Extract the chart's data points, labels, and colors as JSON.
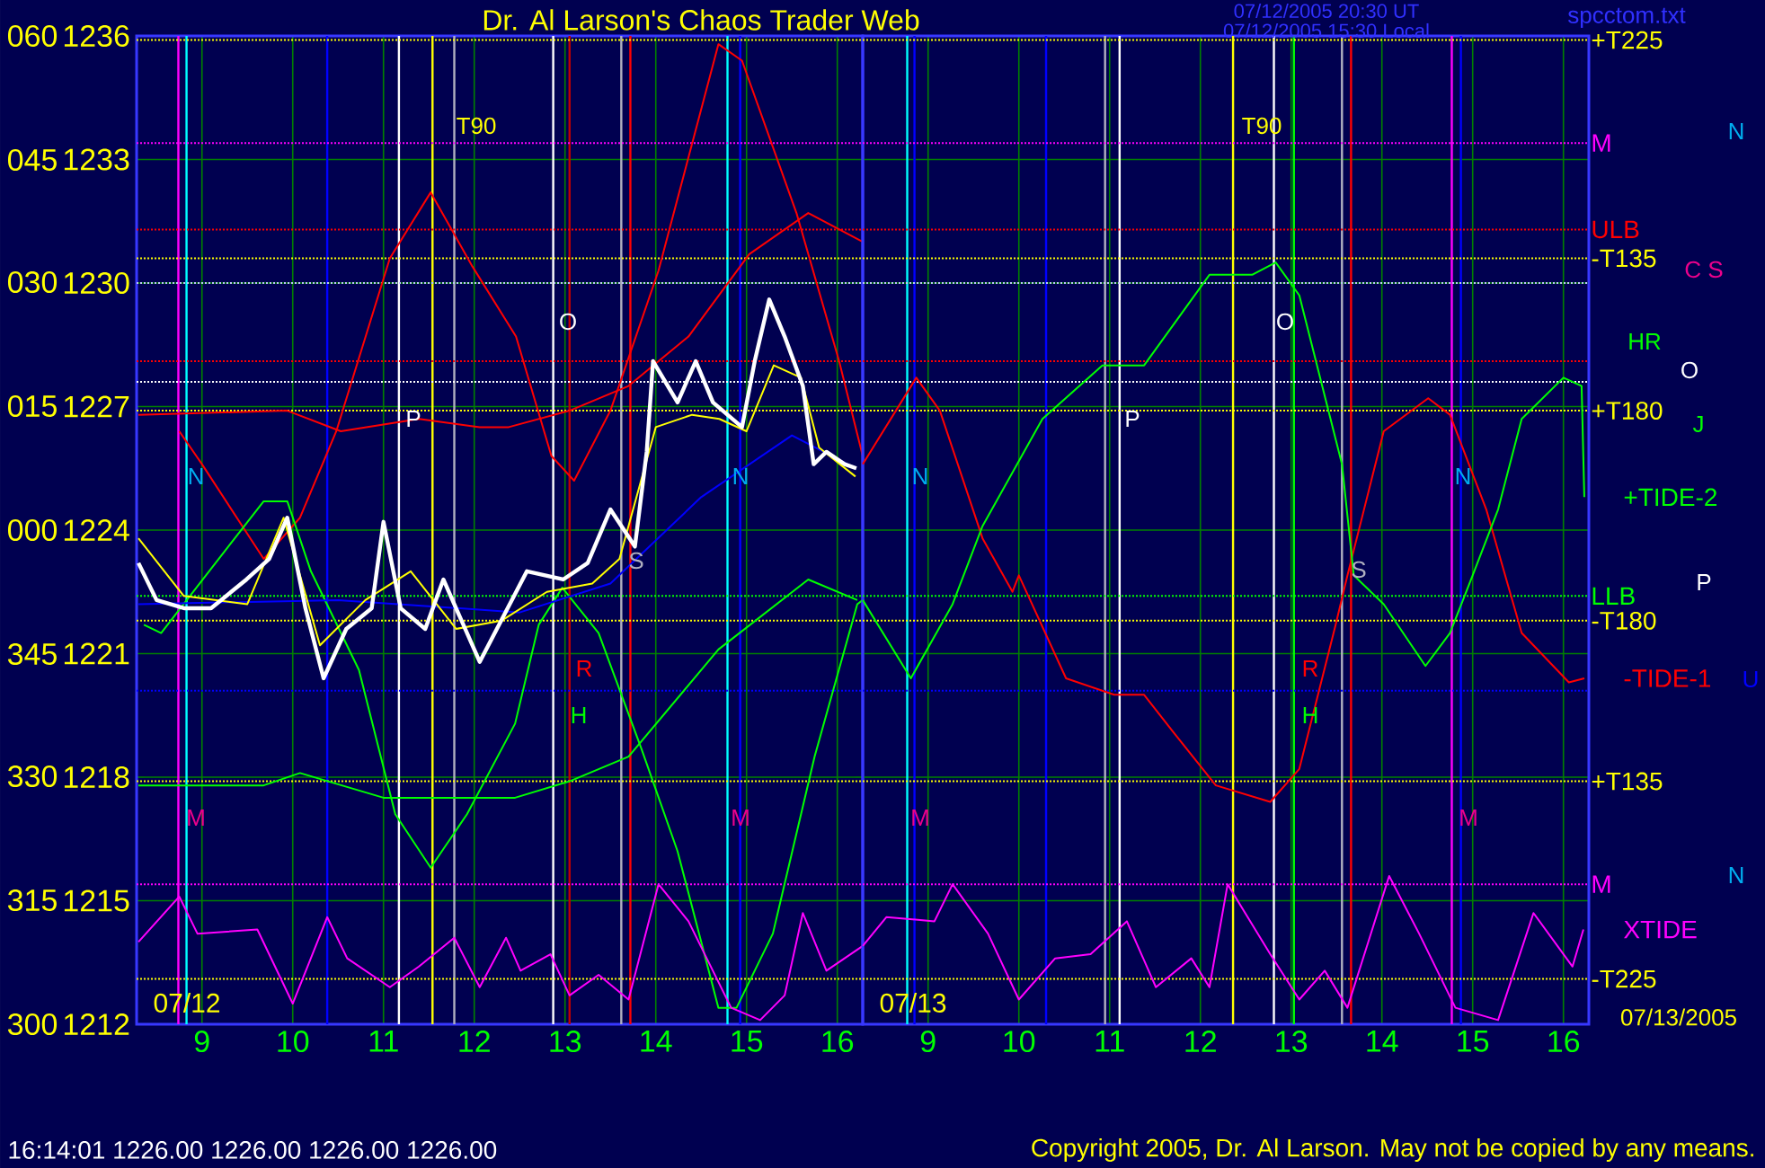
{
  "chart_data": [
    {
      "type": "line",
      "title": "Dr. Al Larson's Chaos Trader Web",
      "xlim": [
        8.28,
        16.28
      ],
      "ylim": [
        1212,
        1236
      ],
      "grid": true,
      "xticks": [
        9,
        10,
        11,
        12,
        13,
        14,
        15,
        16
      ],
      "yticks": [
        1212,
        1215,
        1218,
        1221,
        1224,
        1227,
        1230,
        1233,
        1236
      ],
      "series": [
        {
          "color": "#ff0000",
          "x": [
            8.75,
            9.0,
            9.68,
            10.08,
            10.48,
            11.07,
            11.52,
            11.98,
            12.46,
            12.85,
            13.1,
            13.5,
            14.03,
            14.69,
            14.95,
            15.55,
            16.02,
            16.28
          ],
          "values": [
            1226.4,
            1225.6,
            1223.3,
            1224.3,
            1226.4,
            1230.6,
            1232.2,
            1230.4,
            1228.7,
            1225.8,
            1225.2,
            1226.9,
            1230.3,
            1235.8,
            1235.4,
            1231.7,
            1228.1,
            1225.8
          ]
        },
        {
          "color": "#ff0000",
          "x": [
            8.3,
            9.94,
            10.53,
            11.39,
            12.06,
            12.38,
            13.05,
            13.7,
            14.36,
            15.03,
            15.68,
            16.28
          ],
          "values": [
            1226.8,
            1226.9,
            1226.4,
            1226.7,
            1226.5,
            1226.5,
            1226.9,
            1227.5,
            1228.7,
            1230.7,
            1231.7,
            1231.0
          ]
        },
        {
          "color": "#00ff00",
          "x": [
            8.36,
            8.55,
            9.29,
            9.68,
            9.94,
            10.2,
            10.73,
            11.13,
            11.52,
            11.92,
            12.45,
            12.71,
            12.97,
            13.37,
            13.84,
            14.24,
            14.69,
            14.89,
            15.29,
            15.75,
            16.22,
            16.28
          ],
          "values": [
            1221.7,
            1221.5,
            1223.6,
            1224.7,
            1224.7,
            1223.0,
            1220.6,
            1217.1,
            1215.8,
            1217.1,
            1219.3,
            1221.7,
            1222.6,
            1221.5,
            1218.7,
            1216.2,
            1212.4,
            1212.4,
            1214.2,
            1218.5,
            1222.2,
            1222.3
          ]
        },
        {
          "color": "#00ff00",
          "x": [
            8.3,
            9.68,
            10.08,
            11.0,
            12.06,
            12.45,
            13.05,
            13.7,
            14.69,
            15.68,
            16.22
          ],
          "values": [
            1217.8,
            1217.8,
            1218.1,
            1217.5,
            1217.5,
            1217.5,
            1217.9,
            1218.5,
            1221.1,
            1222.8,
            1222.3
          ]
        },
        {
          "color": "#ff00ff",
          "x": [
            8.3,
            8.75,
            8.95,
            9.61,
            10.0,
            10.38,
            10.6,
            11.07,
            11.39,
            11.78,
            12.06,
            12.35,
            12.51,
            12.84,
            13.05,
            13.37,
            13.7,
            14.03,
            14.36,
            14.83,
            15.15,
            15.42,
            15.62,
            15.88,
            16.28
          ],
          "values": [
            1214.0,
            1215.1,
            1214.2,
            1214.3,
            1212.5,
            1214.6,
            1213.6,
            1212.9,
            1213.4,
            1214.1,
            1212.9,
            1214.1,
            1213.3,
            1213.7,
            1212.7,
            1213.2,
            1212.6,
            1215.4,
            1214.5,
            1212.4,
            1212.1,
            1212.7,
            1214.7,
            1213.3,
            1213.9
          ]
        },
        {
          "color": "#0000ff",
          "x": [
            8.3,
            10.5,
            12.5,
            13.5,
            14.5,
            15.5,
            16.2
          ],
          "values": [
            1222.2,
            1222.3,
            1222.0,
            1222.7,
            1224.8,
            1226.3,
            1225.5
          ]
        },
        {
          "color": "#ffff00",
          "x": [
            8.3,
            8.8,
            9.5,
            9.9,
            10.3,
            10.8,
            11.3,
            11.8,
            12.3,
            12.8,
            13.3,
            13.6,
            14.0,
            14.4,
            14.7,
            15.0,
            15.3,
            15.6,
            15.8,
            16.2
          ],
          "values": [
            1223.8,
            1222.4,
            1222.2,
            1224.3,
            1221.2,
            1222.3,
            1223.0,
            1221.6,
            1221.8,
            1222.5,
            1222.7,
            1223.3,
            1226.5,
            1226.8,
            1226.7,
            1226.4,
            1228.0,
            1227.7,
            1226.0,
            1225.3
          ]
        },
        {
          "color": "#ffffff",
          "x": [
            8.3,
            8.5,
            8.81,
            9.1,
            9.49,
            9.74,
            9.94,
            10.14,
            10.34,
            10.59,
            10.87,
            11.0,
            11.19,
            11.46,
            11.66,
            12.06,
            12.32,
            12.58,
            12.98,
            13.25,
            13.5,
            13.77,
            13.9,
            13.97,
            14.24,
            14.44,
            14.63,
            14.95,
            15.09,
            15.25,
            15.42,
            15.62,
            15.74,
            15.88,
            16.08,
            16.21
          ],
          "values": [
            1223.2,
            1222.3,
            1222.1,
            1222.1,
            1222.8,
            1223.3,
            1224.3,
            1222.1,
            1220.4,
            1221.6,
            1222.1,
            1224.2,
            1222.1,
            1221.6,
            1222.8,
            1220.8,
            1221.9,
            1223.0,
            1222.8,
            1223.2,
            1224.5,
            1223.6,
            1225.9,
            1228.1,
            1227.1,
            1228.1,
            1227.1,
            1226.5,
            1228.1,
            1229.6,
            1228.7,
            1227.5,
            1225.6,
            1225.9,
            1225.6,
            1225.5
          ]
        }
      ],
      "ref_lines": [
        {
          "axis": "x",
          "value": 8.74,
          "color": "#ff00ff"
        },
        {
          "axis": "x",
          "value": 8.83,
          "color": "#00ffff"
        },
        {
          "axis": "x",
          "value": 10.38,
          "color": "#0000ff"
        },
        {
          "axis": "x",
          "value": 11.17,
          "color": "#ffffff"
        },
        {
          "axis": "x",
          "value": 11.54,
          "color": "#ffff00"
        },
        {
          "axis": "x",
          "value": 11.78,
          "color": "#b0b0c0"
        },
        {
          "axis": "x",
          "value": 12.87,
          "color": "#ffffff"
        },
        {
          "axis": "x",
          "value": 13.05,
          "color": "#c00000"
        },
        {
          "axis": "x",
          "value": 13.62,
          "color": "#b0b0c0"
        },
        {
          "axis": "x",
          "value": 13.72,
          "color": "#ff0000"
        },
        {
          "axis": "x",
          "value": 14.79,
          "color": "#00ffff"
        },
        {
          "axis": "x",
          "value": 14.93,
          "color": "#0000ff"
        },
        {
          "axis": "y",
          "value": 1235.9,
          "color": "#ffff00",
          "line_style": "dotted"
        },
        {
          "axis": "y",
          "value": 1233.4,
          "color": "#ff00ff",
          "line_style": "dotted"
        },
        {
          "axis": "y",
          "value": 1231.3,
          "color": "#ff0000",
          "line_style": "dotted"
        },
        {
          "axis": "y",
          "value": 1230.6,
          "color": "#ffff00",
          "line_style": "dotted"
        },
        {
          "axis": "y",
          "value": 1230.0,
          "color": "#c0c0ff",
          "line_style": "dotted"
        },
        {
          "axis": "y",
          "value": 1228.1,
          "color": "#ff0000",
          "line_style": "dotted"
        },
        {
          "axis": "y",
          "value": 1227.6,
          "color": "#ffffff",
          "line_style": "dotted"
        },
        {
          "axis": "y",
          "value": 1226.9,
          "color": "#ffff00",
          "line_style": "dotted"
        },
        {
          "axis": "y",
          "value": 1222.4,
          "color": "#00ff00",
          "line_style": "dotted"
        },
        {
          "axis": "y",
          "value": 1221.8,
          "color": "#ffff00",
          "line_style": "dotted"
        },
        {
          "axis": "y",
          "value": 1220.1,
          "color": "#0000ff",
          "line_style": "dotted"
        },
        {
          "axis": "y",
          "value": 1217.9,
          "color": "#ffff00",
          "line_style": "dotted"
        },
        {
          "axis": "y",
          "value": 1215.4,
          "color": "#ff00ff",
          "line_style": "dotted"
        },
        {
          "axis": "y",
          "value": 1213.1,
          "color": "#ffff00",
          "line_style": "dotted"
        }
      ],
      "annotations": [
        "07/12/2005 20:30 UT",
        "07/12/2005 15:30 Local",
        "spcctom.txt",
        "16:14:01  1226.00 1226.00 1226.00 1226.00",
        "Copyright 2005, Dr. Al Larson. May not be copied by any means.",
        "060",
        "045",
        "030",
        "015",
        "000",
        "345",
        "330",
        "315",
        "300",
        "07/12",
        "T90",
        "O",
        "P",
        "N",
        "N",
        "S",
        "R",
        "H",
        "M",
        "M"
      ]
    },
    {
      "type": "line",
      "tick_labels": "x",
      "xlim": [
        8.28,
        16.28
      ],
      "ylim": [
        1212,
        1236
      ],
      "grid": true,
      "xticks": [
        9,
        10,
        11,
        12,
        13,
        14,
        15,
        16
      ],
      "yticks": [
        1212,
        1215,
        1218,
        1221,
        1224,
        1227,
        1230,
        1233,
        1236
      ],
      "series": [
        {
          "name": "-TIDE-1",
          "color": "#ff0000",
          "x": [
            8.28,
            8.87,
            9.13,
            9.6,
            9.93,
            10.0,
            10.52,
            11.05,
            11.38,
            11.7,
            12.17,
            12.77,
            13.09,
            13.49,
            13.62,
            14.02,
            14.51,
            14.75,
            15.15,
            15.41,
            15.54,
            16.06,
            16.23
          ],
          "values": [
            1225.6,
            1227.7,
            1226.9,
            1223.8,
            1222.5,
            1222.9,
            1220.4,
            1220.0,
            1220.0,
            1219.1,
            1217.8,
            1217.4,
            1218.2,
            1221.7,
            1222.9,
            1226.4,
            1227.2,
            1226.8,
            1224.5,
            1222.5,
            1221.5,
            1220.3,
            1220.4
          ]
        },
        {
          "name": "+TIDE-2",
          "color": "#00ff00",
          "x": [
            8.28,
            8.81,
            9.27,
            9.6,
            10.26,
            10.92,
            11.38,
            12.1,
            12.57,
            12.83,
            13.09,
            13.56,
            13.69,
            14.02,
            14.48,
            14.75,
            15.0,
            15.28,
            15.54,
            16.0,
            16.2,
            16.23
          ],
          "values": [
            1222.3,
            1220.4,
            1222.2,
            1224.1,
            1226.7,
            1228.0,
            1228.0,
            1230.2,
            1230.2,
            1230.5,
            1229.7,
            1225.6,
            1222.9,
            1222.2,
            1220.7,
            1221.5,
            1222.9,
            1224.5,
            1226.7,
            1227.7,
            1227.5,
            1224.8
          ]
        },
        {
          "name": "XTIDE",
          "color": "#ff00ff",
          "x": [
            8.28,
            8.54,
            9.07,
            9.27,
            9.66,
            10.0,
            10.4,
            10.79,
            11.19,
            11.51,
            11.9,
            12.1,
            12.3,
            12.77,
            13.09,
            13.37,
            13.62,
            14.08,
            14.41,
            14.81,
            15.28,
            15.67,
            16.1,
            16.22
          ],
          "values": [
            1213.9,
            1214.6,
            1214.5,
            1215.4,
            1214.2,
            1212.6,
            1213.6,
            1213.7,
            1214.5,
            1212.9,
            1213.6,
            1212.9,
            1215.4,
            1213.7,
            1212.6,
            1213.3,
            1212.4,
            1215.6,
            1214.2,
            1212.4,
            1212.1,
            1214.7,
            1213.4,
            1214.3
          ]
        }
      ],
      "ref_lines": [
        {
          "axis": "x",
          "value": 8.77,
          "color": "#00ffff"
        },
        {
          "axis": "x",
          "value": 8.85,
          "color": "#0000ff"
        },
        {
          "axis": "x",
          "value": 10.3,
          "color": "#0000ff"
        },
        {
          "axis": "x",
          "value": 10.95,
          "color": "#b0b0c0"
        },
        {
          "axis": "x",
          "value": 11.11,
          "color": "#ffffff"
        },
        {
          "axis": "x",
          "value": 12.36,
          "color": "#ffff00"
        },
        {
          "axis": "x",
          "value": 12.81,
          "color": "#ffffff"
        },
        {
          "axis": "x",
          "value": 13.03,
          "color": "#00ff00"
        },
        {
          "axis": "x",
          "value": 13.56,
          "color": "#b0b0c0"
        },
        {
          "axis": "x",
          "value": 13.66,
          "color": "#ff0000"
        },
        {
          "axis": "x",
          "value": 14.77,
          "color": "#ff00ff"
        },
        {
          "axis": "x",
          "value": 14.87,
          "color": "#0000ff"
        },
        {
          "axis": "y",
          "value": 1235.9,
          "label": "+T225",
          "color": "#ffff00",
          "line_style": "dotted"
        },
        {
          "axis": "y",
          "value": 1233.4,
          "label": "M",
          "color": "#ff00ff",
          "line_style": "dotted"
        },
        {
          "axis": "y",
          "value": 1231.3,
          "label": "ULB",
          "color": "#ff0000",
          "line_style": "dotted"
        },
        {
          "axis": "y",
          "value": 1230.6,
          "label": "-T135",
          "color": "#ffff00",
          "line_style": "dotted"
        },
        {
          "axis": "y",
          "value": 1230.0,
          "color": "#c0c0ff",
          "line_style": "dotted"
        },
        {
          "axis": "y",
          "value": 1228.1,
          "color": "#ff0000",
          "line_style": "dotted"
        },
        {
          "axis": "y",
          "value": 1227.6,
          "color": "#ffffff",
          "line_style": "dotted"
        },
        {
          "axis": "y",
          "value": 1226.9,
          "label": "+T180",
          "color": "#ffff00",
          "line_style": "dotted"
        },
        {
          "axis": "y",
          "value": 1222.4,
          "label": "LLB",
          "color": "#00ff00",
          "line_style": "dotted"
        },
        {
          "axis": "y",
          "value": 1221.8,
          "label": "-T180",
          "color": "#ffff00",
          "line_style": "dotted"
        },
        {
          "axis": "y",
          "value": 1220.1,
          "color": "#0000ff",
          "line_style": "dotted"
        },
        {
          "axis": "y",
          "value": 1217.9,
          "label": "+T135",
          "color": "#ffff00",
          "line_style": "dotted"
        },
        {
          "axis": "y",
          "value": 1215.4,
          "label": "M",
          "color": "#ff00ff",
          "line_style": "dotted"
        },
        {
          "axis": "y",
          "value": 1213.1,
          "label": "-T225",
          "color": "#ffff00",
          "line_style": "dotted"
        }
      ],
      "annotations": [
        "07/13/2005",
        "N",
        "C S",
        "HR",
        "O",
        "J",
        "P",
        "U",
        "N",
        "07/13",
        "T90",
        "O",
        "P",
        "N",
        "N",
        "S",
        "R",
        "H",
        "M",
        "M"
      ]
    }
  ]
}
